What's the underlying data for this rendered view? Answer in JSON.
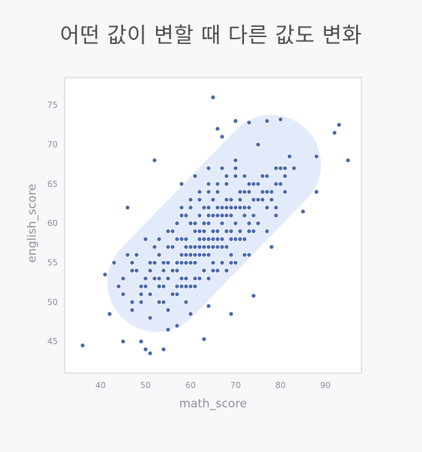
{
  "title": "어떤 값이 변할 때 다른 값도 변화",
  "colors": {
    "background": "#f8f8fa",
    "plot_background": "#ffffff",
    "frame": "#c9cbd3",
    "point": "#4a67a8",
    "point_edge": "#ffffff",
    "highlight_band": "#e3ebfb"
  },
  "chart_data": {
    "type": "scatter",
    "title": "",
    "xlabel": "math_score",
    "ylabel": "english_score",
    "xlim": [
      32,
      98
    ],
    "ylim": [
      41,
      78.5
    ],
    "xticks": [
      40,
      50,
      60,
      70,
      80,
      90
    ],
    "yticks": [
      45,
      50,
      55,
      60,
      65,
      70,
      75
    ],
    "grid": false,
    "annotation": "shaded diagonal band enclosing the main cloud of points, from lower-left to upper-right",
    "band": {
      "from": [
        52.5,
        52.5
      ],
      "to": [
        78,
        67.5
      ],
      "half_width_x": 11
    },
    "x": [
      36,
      41,
      42,
      45,
      46,
      49,
      50,
      51,
      52,
      54,
      55,
      57,
      59,
      60,
      63,
      64,
      65,
      66,
      67,
      68,
      69,
      70,
      73,
      74,
      75,
      77,
      78,
      80,
      81,
      82,
      85,
      88,
      88,
      92,
      93,
      95,
      44,
      47,
      49,
      51,
      53,
      55,
      57,
      59,
      61,
      63,
      65,
      67,
      69,
      71,
      73,
      75,
      77,
      79,
      46,
      48,
      50,
      52,
      54,
      56,
      58,
      60,
      62,
      64,
      66,
      68,
      70,
      72,
      74,
      76,
      78,
      80,
      43,
      45,
      47,
      49,
      51,
      53,
      55,
      57,
      59,
      61,
      63,
      65,
      67,
      69,
      71,
      73,
      75,
      77,
      79,
      81,
      83,
      48,
      50,
      52,
      54,
      56,
      58,
      60,
      62,
      64,
      66,
      68,
      70,
      72,
      74,
      76,
      45,
      47,
      49,
      51,
      53,
      55,
      57,
      59,
      61,
      63,
      65,
      67,
      69,
      71,
      73,
      75,
      77,
      79,
      81,
      50,
      52,
      54,
      56,
      58,
      60,
      62,
      64,
      66,
      68,
      70,
      72,
      74,
      76,
      78,
      80,
      53,
      55,
      57,
      59,
      61,
      63,
      65,
      67,
      69,
      71,
      73,
      75,
      77,
      47,
      49,
      51,
      53,
      55,
      57,
      59,
      61,
      63,
      65,
      67,
      69,
      71,
      73,
      75,
      77,
      79,
      58,
      60,
      62,
      64,
      66,
      68,
      70,
      56,
      58,
      60,
      62,
      64,
      66,
      68,
      70,
      72,
      55,
      57,
      59,
      61,
      63,
      65,
      67,
      69,
      71,
      73,
      52,
      54,
      56,
      58,
      60,
      62,
      64,
      66,
      68,
      70,
      72,
      74,
      60,
      62,
      64,
      66,
      68,
      59,
      61,
      63,
      65,
      67,
      57,
      59,
      61,
      63,
      65,
      67,
      69,
      54,
      56,
      58,
      60,
      62,
      64,
      66,
      68,
      70,
      72,
      62,
      64,
      66,
      68,
      60,
      62,
      64,
      66,
      63,
      65,
      67,
      58,
      61,
      64,
      67,
      70
    ],
    "y": [
      44.5,
      53.5,
      48.5,
      45,
      62,
      45,
      44,
      43.5,
      68,
      44,
      46.5,
      47,
      50,
      48.5,
      45.3,
      49.5,
      76,
      72,
      71,
      66,
      48.5,
      73,
      72.8,
      50.8,
      70,
      73,
      57,
      73.2,
      64,
      68.5,
      61.5,
      68.5,
      64,
      71.5,
      72.5,
      68,
      52,
      50,
      52,
      48,
      50,
      49,
      51,
      53,
      52,
      54,
      55,
      57,
      55,
      58,
      56,
      60,
      59,
      61,
      56,
      54,
      53,
      55,
      52,
      57,
      53,
      56,
      58,
      57,
      59,
      61,
      60,
      62,
      63,
      64,
      63,
      65,
      55,
      53,
      55,
      51,
      54,
      52,
      55,
      55,
      57,
      56,
      58,
      59,
      60,
      61,
      62,
      62,
      63,
      64,
      65,
      66,
      67,
      56,
      58,
      57,
      55,
      57,
      58,
      57,
      59,
      60,
      61,
      62,
      62,
      64,
      65,
      66,
      51,
      54,
      52,
      55,
      56,
      57,
      58,
      58,
      59,
      59,
      61,
      61,
      62,
      63,
      64,
      65,
      66,
      67,
      67,
      52,
      53,
      55,
      54,
      56,
      56,
      57,
      58,
      58,
      59,
      60,
      61,
      61,
      63,
      64,
      67,
      58,
      59,
      60,
      61,
      60,
      62,
      63,
      62,
      63,
      64,
      65,
      65,
      66,
      49,
      50,
      51,
      53,
      53,
      54,
      55,
      55,
      56,
      57,
      58,
      58,
      59,
      59,
      60,
      62,
      62,
      62,
      63,
      64,
      65,
      65,
      66,
      67,
      59,
      61,
      62,
      63,
      64,
      65,
      65,
      66,
      66,
      55,
      55,
      56,
      57,
      57,
      58,
      58,
      59,
      59,
      60,
      55,
      54,
      54,
      55,
      55,
      56,
      56,
      57,
      57,
      58,
      58,
      59,
      60,
      61,
      62,
      62,
      63,
      56,
      56,
      57,
      57,
      58,
      52,
      52,
      53,
      54,
      54,
      55,
      56,
      50,
      51,
      52,
      52,
      53,
      53,
      54,
      54,
      55,
      56,
      61,
      61,
      62,
      62,
      63,
      63,
      64,
      64,
      60,
      59,
      60,
      65,
      66,
      67,
      67,
      68
    ]
  }
}
